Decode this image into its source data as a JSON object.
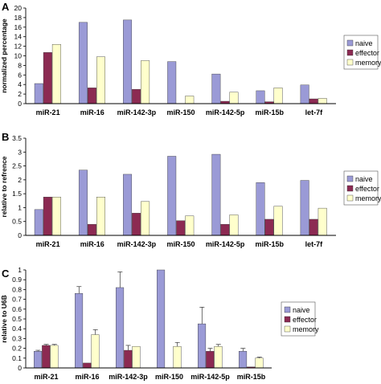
{
  "chart_data": [
    {
      "panel": "A",
      "type": "bar",
      "title": "",
      "xlabel": "",
      "ylabel": "normalized percentage",
      "ylim": [
        0,
        20
      ],
      "yticks": [
        0,
        2,
        4,
        6,
        8,
        10,
        12,
        14,
        16,
        18,
        20
      ],
      "categories": [
        "miR-21",
        "miR-16",
        "miR-142-3p",
        "miR-150",
        "miR-142-5p",
        "miR-15b",
        "let-7f"
      ],
      "series": [
        {
          "name": "naive",
          "values": [
            4.2,
            17.0,
            17.5,
            8.8,
            6.2,
            2.7,
            3.9
          ]
        },
        {
          "name": "effector",
          "values": [
            10.7,
            3.3,
            3.0,
            0.0,
            0.5,
            0.4,
            1.0
          ]
        },
        {
          "name": "memory",
          "values": [
            12.4,
            9.8,
            9.0,
            1.6,
            2.4,
            3.3,
            1.1
          ]
        }
      ],
      "legend": "right",
      "grid": false
    },
    {
      "panel": "B",
      "type": "bar",
      "title": "",
      "xlabel": "",
      "ylabel": "relative to refrence",
      "ylim": [
        0,
        3.5
      ],
      "yticks": [
        0,
        0.5,
        1,
        1.5,
        2,
        2.5,
        3,
        3.5
      ],
      "ytick_labels": [
        "0",
        "0.5",
        "1",
        "1.5",
        "2",
        "2.5",
        "3",
        "3.5"
      ],
      "categories": [
        "miR-21",
        "miR-16",
        "miR-142-3p",
        "miR-150",
        "miR-142-5p",
        "miR-15b",
        "let-7f"
      ],
      "series": [
        {
          "name": "naive",
          "values": [
            0.93,
            2.35,
            2.2,
            2.85,
            2.92,
            1.9,
            1.98
          ]
        },
        {
          "name": "effector",
          "values": [
            1.38,
            0.4,
            0.8,
            0.53,
            0.4,
            0.58,
            0.58
          ]
        },
        {
          "name": "memory",
          "values": [
            1.38,
            1.38,
            1.22,
            0.7,
            0.74,
            1.05,
            0.98
          ]
        }
      ],
      "legend": "right",
      "grid": false
    },
    {
      "panel": "C",
      "type": "bar",
      "title": "",
      "xlabel": "",
      "ylabel": "relative to U6B",
      "ylim": [
        0,
        1.0
      ],
      "yticks": [
        0,
        0.1,
        0.2,
        0.3,
        0.4,
        0.5,
        0.6,
        0.7,
        0.8,
        0.9,
        1
      ],
      "ytick_labels": [
        "0",
        "0.1",
        "0.2",
        "0.3",
        "0.4",
        "0.5",
        "0.6",
        "0.7",
        "0.8",
        "0.9",
        "1"
      ],
      "categories": [
        "miR-21",
        "miR-16",
        "miR-142-3p",
        "miR-150",
        "miR-142-5p",
        "miR-15b"
      ],
      "series": [
        {
          "name": "naive",
          "values": [
            0.17,
            0.76,
            0.82,
            1.0,
            0.45,
            0.17
          ],
          "errors": [
            0.01,
            0.07,
            0.16,
            0.0,
            0.17,
            0.03
          ]
        },
        {
          "name": "effector",
          "values": [
            0.23,
            0.05,
            0.18,
            0.0,
            0.17,
            0.01
          ],
          "errors": [
            0.01,
            0.0,
            0.05,
            0.0,
            0.03,
            0.0
          ]
        },
        {
          "name": "memory",
          "values": [
            0.23,
            0.34,
            0.22,
            0.22,
            0.22,
            0.1
          ],
          "errors": [
            0.01,
            0.05,
            0.0,
            0.04,
            0.02,
            0.01
          ]
        }
      ],
      "legend": "right",
      "grid": false,
      "error_bars": true
    }
  ],
  "colors": {
    "naive": "#9a9ad6",
    "effector": "#8c2a52",
    "memory": "#ffffcc",
    "bar_edge": "#333333",
    "axis": "#000000"
  }
}
